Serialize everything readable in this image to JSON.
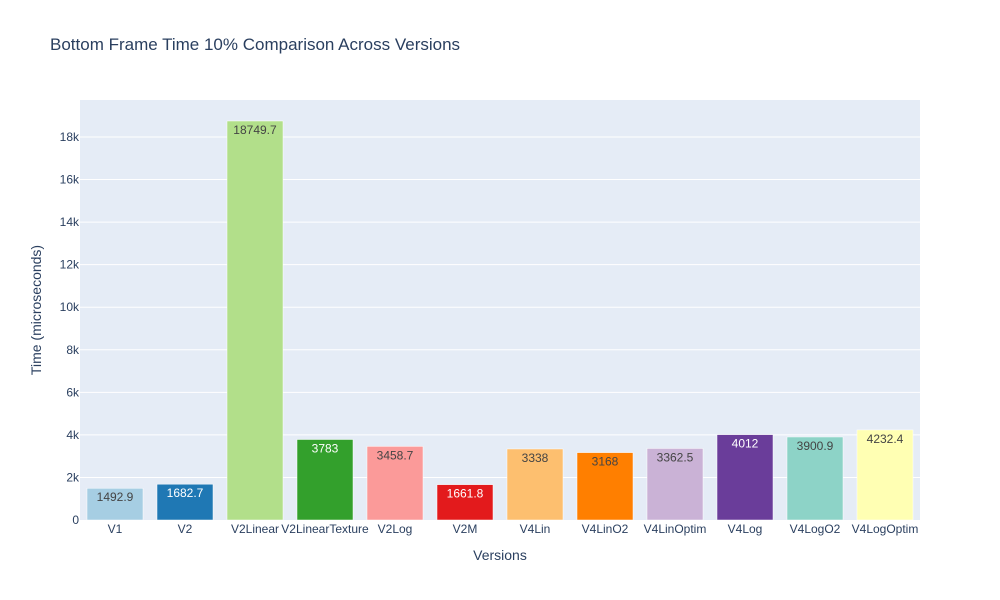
{
  "chart_data": {
    "type": "bar",
    "title": "Bottom Frame Time 10% Comparison Across Versions",
    "xlabel": "Versions",
    "ylabel": "Time (microseconds)",
    "ylim": [
      0,
      19736.5
    ],
    "yticks": [
      0,
      2000,
      4000,
      6000,
      8000,
      10000,
      12000,
      14000,
      16000,
      18000
    ],
    "ytick_labels": [
      "0",
      "2k",
      "4k",
      "6k",
      "8k",
      "10k",
      "12k",
      "14k",
      "16k",
      "18k"
    ],
    "grid": true,
    "legend": "none",
    "plot_background": "#e5ecf6",
    "grid_color": "#ffffff",
    "categories": [
      "V1",
      "V2",
      "V2Linear",
      "V2LinearTexture",
      "V2Log",
      "V2M",
      "V4Lin",
      "V4LinO2",
      "V4LinOptim",
      "V4Log",
      "V4LogO2",
      "V4LogOptim"
    ],
    "values": [
      1492.9,
      1682.7,
      18749.7,
      3783,
      3458.7,
      1661.8,
      3338,
      3168,
      3362.5,
      4012,
      3900.9,
      4232.4
    ],
    "value_labels": [
      "1492.9",
      "1682.7",
      "18749.7",
      "3783",
      "3458.7",
      "1661.8",
      "3338",
      "3168",
      "3362.5",
      "4012",
      "3900.9",
      "4232.4"
    ],
    "colors": [
      "#a6cee3",
      "#1f78b4",
      "#b2df8a",
      "#33a02c",
      "#fb9a99",
      "#e31a1c",
      "#fdbf6f",
      "#ff7f00",
      "#cab2d6",
      "#6a3d9a",
      "#8dd3c7",
      "#ffffb3"
    ],
    "label_colors": [
      "#444444",
      "#ffffff",
      "#444444",
      "#ffffff",
      "#444444",
      "#ffffff",
      "#444444",
      "#444444",
      "#444444",
      "#ffffff",
      "#444444",
      "#444444"
    ]
  }
}
